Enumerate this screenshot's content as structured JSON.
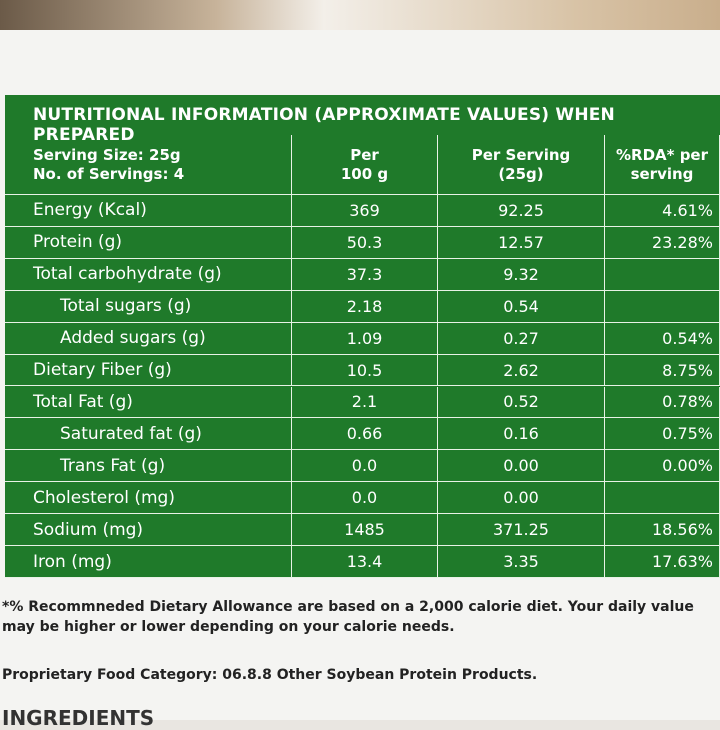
{
  "label": {
    "title": "NUTRITIONAL INFORMATION (APPROXIMATE VALUES) WHEN PREPARED",
    "header": [
      [
        "Serving Size: 25g",
        "No. of Servings: 4"
      ],
      [
        "Per",
        "100 g"
      ],
      [
        "Per Serving",
        "(25g)"
      ],
      [
        "%RDA* per",
        "serving"
      ]
    ],
    "rows": [
      [
        "Energy (Kcal)",
        "369",
        "92.25",
        "4.61%"
      ],
      [
        "Protein (g)",
        "50.3",
        "12.57",
        "23.28%"
      ],
      [
        "Total carbohydrate (g)",
        "37.3",
        "9.32",
        null
      ],
      [
        "Total sugars (g)",
        "2.18",
        "0.54",
        null
      ],
      [
        "Added sugars (g)",
        "1.09",
        "0.27",
        "0.54%"
      ],
      [
        "Dietary Fiber (g)",
        "10.5",
        "2.62",
        "8.75%"
      ],
      [
        "Total Fat (g)",
        "2.1",
        "0.52",
        "0.78%"
      ],
      [
        "Saturated fat (g)",
        "0.66",
        "0.16",
        "0.75%"
      ],
      [
        "Trans Fat (g)",
        "0.0",
        "0.00",
        "0.00%"
      ],
      [
        "Cholesterol (mg)",
        "0.0",
        "0.00",
        null
      ],
      [
        "Sodium (mg)",
        "1485",
        "371.25",
        "18.56%"
      ],
      [
        "Iron (mg)",
        "13.4",
        "3.35",
        "17.63%"
      ]
    ],
    "footnote": "*% Recommneded Dietary Allowance are based on a 2,000 calorie diet. Your daily value may be higher or lower depending on your calorie needs.",
    "category": "Proprietary Food Category: 06.8.8 Other Soybean Protein Products.",
    "ingredients_heading": "INGREDIENTS"
  }
}
